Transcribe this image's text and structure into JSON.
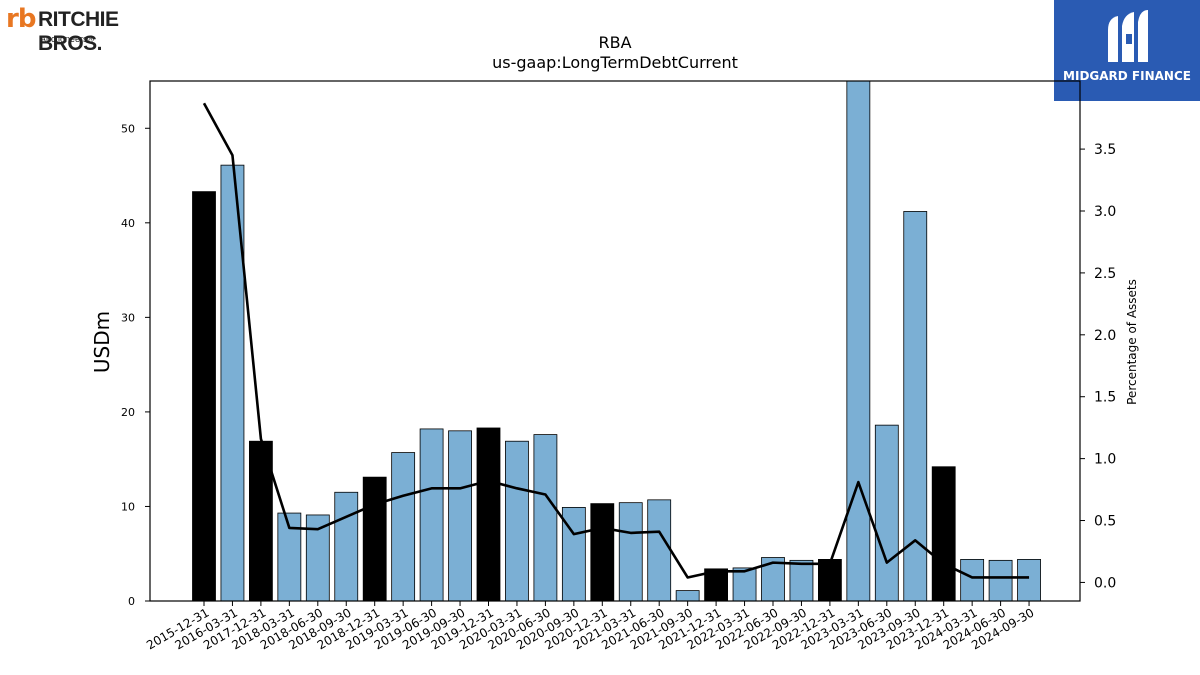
{
  "logos": {
    "left_mark": "rb",
    "left_name": "RITCHIE BROS.",
    "left_sub": "Auctioneers®",
    "right_name": "MIDGARD FINANCE"
  },
  "chart_data": {
    "type": "bar",
    "title": "RBA",
    "subtitle": "us-gaap:LongTermDebtCurrent",
    "ylabel": "USDm",
    "y2label": "Percentage of Assets",
    "ylim": [
      0,
      55
    ],
    "y2lim": [
      -0.15,
      4.05
    ],
    "yticks": [
      0,
      10,
      20,
      30,
      40,
      50
    ],
    "y2ticks": [
      0.0,
      0.5,
      1.0,
      1.5,
      2.0,
      2.5,
      3.0,
      3.5
    ],
    "categories": [
      "2015-12-31",
      "2016-03-31",
      "2017-12-31",
      "2018-03-31",
      "2018-06-30",
      "2018-09-30",
      "2018-12-31",
      "2019-03-31",
      "2019-06-30",
      "2019-09-30",
      "2019-12-31",
      "2020-03-31",
      "2020-06-30",
      "2020-09-30",
      "2020-12-31",
      "2021-03-31",
      "2021-06-30",
      "2021-09-30",
      "2021-12-31",
      "2022-03-31",
      "2022-06-30",
      "2022-09-30",
      "2022-12-31",
      "2023-03-31",
      "2023-06-30",
      "2023-09-30",
      "2023-12-31",
      "2024-03-31",
      "2024-06-30",
      "2024-09-30"
    ],
    "values": [
      43.3,
      46.1,
      16.9,
      9.3,
      9.1,
      11.5,
      13.1,
      15.7,
      18.2,
      18.0,
      18.3,
      16.9,
      17.6,
      9.9,
      10.3,
      10.4,
      10.7,
      1.1,
      3.4,
      3.5,
      4.6,
      4.3,
      4.4,
      55.5,
      18.6,
      41.2,
      14.2,
      4.4,
      4.3,
      4.4
    ],
    "year_end": [
      true,
      false,
      true,
      false,
      false,
      false,
      true,
      false,
      false,
      false,
      true,
      false,
      false,
      false,
      true,
      false,
      false,
      false,
      true,
      false,
      false,
      false,
      true,
      false,
      false,
      false,
      true,
      false,
      false,
      false
    ],
    "pct_assets": [
      3.87,
      3.45,
      1.16,
      0.44,
      0.43,
      0.53,
      0.63,
      0.7,
      0.76,
      0.76,
      0.82,
      0.76,
      0.71,
      0.39,
      0.44,
      0.4,
      0.41,
      0.04,
      0.09,
      0.09,
      0.16,
      0.15,
      0.15,
      0.81,
      0.16,
      0.34,
      0.15,
      0.04,
      0.04,
      0.04
    ],
    "colors": {
      "year_end_bar": "#000000",
      "quarter_bar": "#7bafd4",
      "line": "#000000",
      "logo_blue": "#2a5bb3",
      "logo_orange": "#e87722"
    }
  }
}
